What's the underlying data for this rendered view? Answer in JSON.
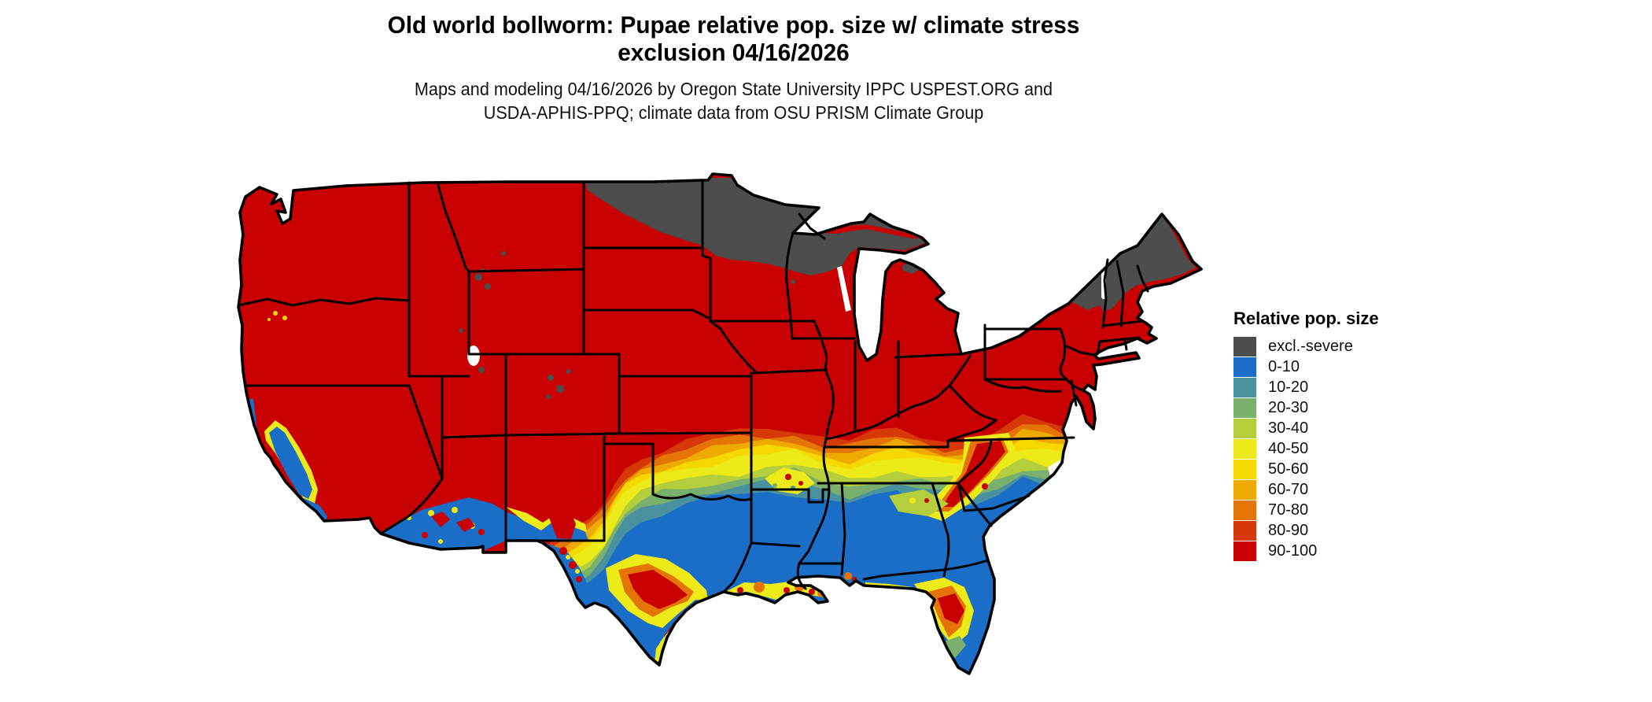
{
  "title": {
    "line1": "Old world bollworm: Pupae relative pop. size w/ climate stress",
    "line2": "exclusion 04/16/2026"
  },
  "subtitle": {
    "line1": "Maps and modeling 04/16/2026 by Oregon State University IPPC USPEST.ORG and",
    "line2": "USDA-APHIS-PPQ; climate data from OSU PRISM Climate Group"
  },
  "legend": {
    "title": "Relative pop. size",
    "items": [
      {
        "label": "excl.-severe",
        "color": "#4d4d4d"
      },
      {
        "label": "0-10",
        "color": "#1b6ec8"
      },
      {
        "label": "10-20",
        "color": "#4a91a0"
      },
      {
        "label": "20-30",
        "color": "#79b06e"
      },
      {
        "label": "30-40",
        "color": "#b5ce3c"
      },
      {
        "label": "40-50",
        "color": "#ecea19"
      },
      {
        "label": "50-60",
        "color": "#f5d800"
      },
      {
        "label": "60-70",
        "color": "#eeaa00"
      },
      {
        "label": "70-80",
        "color": "#e57406"
      },
      {
        "label": "80-90",
        "color": "#d63807"
      },
      {
        "label": "90-100",
        "color": "#c80001"
      }
    ]
  },
  "map": {
    "background": "#ffffff",
    "border_color": "#000000",
    "palette": {
      "excl": "#4d4d4d",
      "c0": "#1b6ec8",
      "c10": "#4a91a0",
      "c20": "#79b06e",
      "c30": "#b5ce3c",
      "c40": "#ecea19",
      "c50": "#f5d800",
      "c60": "#eeaa00",
      "c70": "#e57406",
      "c80": "#d63807",
      "c90": "#c80001",
      "water": "#ffffff"
    }
  }
}
